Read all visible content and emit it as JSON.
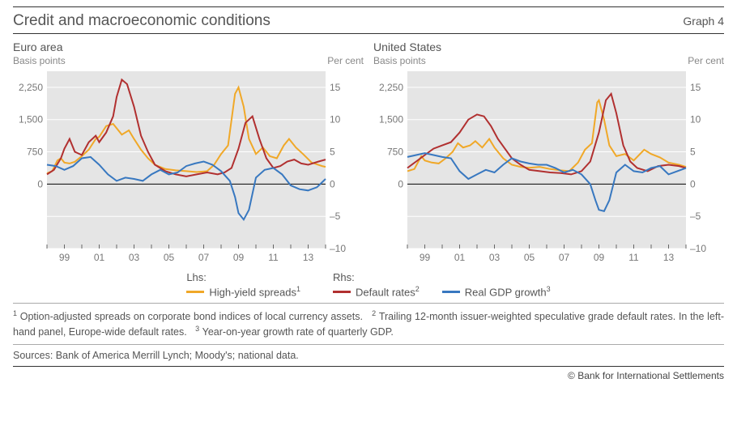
{
  "header": {
    "title": "Credit and macroeconomic conditions",
    "graph_label": "Graph 4"
  },
  "axis_labels": {
    "left": "Basis points",
    "right": "Per cent"
  },
  "chart_style": {
    "type": "line",
    "plot_bg": "#e5e5e5",
    "grid_color": "#ffffff",
    "zero_line_color": "#000000",
    "tick_color": "#666666",
    "tick_label_color": "#777777",
    "tick_fontsize": 12,
    "left_ylim": [
      -1500,
      2625
    ],
    "left_yticks": [
      0,
      750,
      1500,
      2250
    ],
    "right_ylim": [
      -10,
      17.5
    ],
    "right_yticks": [
      -10,
      -5,
      0,
      5,
      10,
      15
    ],
    "x_years": [
      1998,
      2014
    ],
    "xtick_labels": [
      "99",
      "01",
      "03",
      "05",
      "07",
      "09",
      "11",
      "13"
    ],
    "xtick_positions": [
      1999,
      2001,
      2003,
      2005,
      2007,
      2009,
      2011,
      2013
    ],
    "line_width": 2,
    "series_colors": {
      "high_yield_spreads": "#f0a828",
      "default_rates": "#b13030",
      "real_gdp": "#3878c0"
    }
  },
  "panels": [
    {
      "title": "Euro area",
      "series": {
        "high_yield_spreads": [
          [
            1998.0,
            250
          ],
          [
            1998.3,
            300
          ],
          [
            1998.6,
            550
          ],
          [
            1998.8,
            600
          ],
          [
            1999.0,
            500
          ],
          [
            1999.3,
            480
          ],
          [
            1999.6,
            520
          ],
          [
            2000.0,
            650
          ],
          [
            2000.4,
            800
          ],
          [
            2000.8,
            1050
          ],
          [
            2001.0,
            1100
          ],
          [
            2001.4,
            1350
          ],
          [
            2001.8,
            1400
          ],
          [
            2002.3,
            1150
          ],
          [
            2002.7,
            1250
          ],
          [
            2003.0,
            1050
          ],
          [
            2003.4,
            800
          ],
          [
            2003.8,
            600
          ],
          [
            2004.2,
            450
          ],
          [
            2004.8,
            350
          ],
          [
            2005.4,
            320
          ],
          [
            2006.0,
            300
          ],
          [
            2006.6,
            280
          ],
          [
            2007.2,
            300
          ],
          [
            2007.6,
            450
          ],
          [
            2008.0,
            700
          ],
          [
            2008.4,
            900
          ],
          [
            2008.8,
            2100
          ],
          [
            2009.0,
            2250
          ],
          [
            2009.3,
            1800
          ],
          [
            2009.6,
            1050
          ],
          [
            2010.0,
            700
          ],
          [
            2010.4,
            850
          ],
          [
            2010.8,
            650
          ],
          [
            2011.2,
            600
          ],
          [
            2011.6,
            900
          ],
          [
            2011.9,
            1050
          ],
          [
            2012.3,
            850
          ],
          [
            2012.7,
            700
          ],
          [
            2013.2,
            500
          ],
          [
            2013.8,
            420
          ],
          [
            2014.0,
            400
          ]
        ],
        "default_rates": [
          [
            1998.0,
            1.5
          ],
          [
            1998.4,
            2.2
          ],
          [
            1998.8,
            4.0
          ],
          [
            1999.0,
            5.5
          ],
          [
            1999.3,
            7.0
          ],
          [
            1999.6,
            5.0
          ],
          [
            2000.0,
            4.5
          ],
          [
            2000.4,
            6.5
          ],
          [
            2000.8,
            7.5
          ],
          [
            2001.0,
            6.5
          ],
          [
            2001.4,
            8.0
          ],
          [
            2001.8,
            10.5
          ],
          [
            2002.0,
            13.5
          ],
          [
            2002.3,
            16.2
          ],
          [
            2002.6,
            15.5
          ],
          [
            2003.0,
            12.0
          ],
          [
            2003.4,
            7.5
          ],
          [
            2003.8,
            5.0
          ],
          [
            2004.2,
            3.0
          ],
          [
            2004.8,
            2.0
          ],
          [
            2005.4,
            1.5
          ],
          [
            2006.0,
            1.2
          ],
          [
            2006.6,
            1.5
          ],
          [
            2007.2,
            1.8
          ],
          [
            2007.8,
            1.5
          ],
          [
            2008.2,
            1.8
          ],
          [
            2008.6,
            2.5
          ],
          [
            2009.0,
            5.5
          ],
          [
            2009.4,
            9.5
          ],
          [
            2009.8,
            10.5
          ],
          [
            2010.2,
            7.0
          ],
          [
            2010.6,
            4.0
          ],
          [
            2011.0,
            2.5
          ],
          [
            2011.4,
            2.8
          ],
          [
            2011.8,
            3.5
          ],
          [
            2012.2,
            3.8
          ],
          [
            2012.6,
            3.2
          ],
          [
            2013.0,
            3.0
          ],
          [
            2013.6,
            3.5
          ],
          [
            2014.0,
            3.8
          ]
        ],
        "real_gdp": [
          [
            1998.0,
            3.0
          ],
          [
            1998.5,
            2.8
          ],
          [
            1999.0,
            2.2
          ],
          [
            1999.5,
            2.8
          ],
          [
            2000.0,
            4.0
          ],
          [
            2000.5,
            4.2
          ],
          [
            2001.0,
            3.0
          ],
          [
            2001.5,
            1.5
          ],
          [
            2002.0,
            0.5
          ],
          [
            2002.5,
            1.0
          ],
          [
            2003.0,
            0.8
          ],
          [
            2003.5,
            0.5
          ],
          [
            2004.0,
            1.5
          ],
          [
            2004.5,
            2.2
          ],
          [
            2005.0,
            1.5
          ],
          [
            2005.5,
            1.8
          ],
          [
            2006.0,
            2.8
          ],
          [
            2006.5,
            3.2
          ],
          [
            2007.0,
            3.5
          ],
          [
            2007.5,
            3.0
          ],
          [
            2008.0,
            2.0
          ],
          [
            2008.5,
            0.5
          ],
          [
            2008.8,
            -2.0
          ],
          [
            2009.0,
            -4.5
          ],
          [
            2009.3,
            -5.5
          ],
          [
            2009.6,
            -4.0
          ],
          [
            2010.0,
            1.0
          ],
          [
            2010.5,
            2.2
          ],
          [
            2011.0,
            2.5
          ],
          [
            2011.5,
            1.5
          ],
          [
            2012.0,
            -0.2
          ],
          [
            2012.5,
            -0.8
          ],
          [
            2013.0,
            -1.0
          ],
          [
            2013.5,
            -0.5
          ],
          [
            2014.0,
            0.8
          ]
        ]
      }
    },
    {
      "title": "United States",
      "series": {
        "high_yield_spreads": [
          [
            1998.0,
            300
          ],
          [
            1998.4,
            350
          ],
          [
            1998.8,
            650
          ],
          [
            1999.0,
            550
          ],
          [
            1999.4,
            500
          ],
          [
            1999.8,
            480
          ],
          [
            2000.2,
            600
          ],
          [
            2000.6,
            750
          ],
          [
            2000.9,
            950
          ],
          [
            2001.2,
            850
          ],
          [
            2001.6,
            900
          ],
          [
            2001.9,
            1000
          ],
          [
            2002.3,
            850
          ],
          [
            2002.7,
            1050
          ],
          [
            2003.0,
            850
          ],
          [
            2003.5,
            600
          ],
          [
            2004.0,
            450
          ],
          [
            2004.5,
            400
          ],
          [
            2005.0,
            380
          ],
          [
            2005.6,
            400
          ],
          [
            2006.2,
            350
          ],
          [
            2006.8,
            320
          ],
          [
            2007.3,
            300
          ],
          [
            2007.8,
            500
          ],
          [
            2008.2,
            800
          ],
          [
            2008.6,
            950
          ],
          [
            2008.9,
            1900
          ],
          [
            2009.0,
            1950
          ],
          [
            2009.3,
            1500
          ],
          [
            2009.6,
            900
          ],
          [
            2010.0,
            650
          ],
          [
            2010.5,
            700
          ],
          [
            2011.0,
            550
          ],
          [
            2011.6,
            800
          ],
          [
            2012.0,
            700
          ],
          [
            2012.5,
            620
          ],
          [
            2013.0,
            500
          ],
          [
            2013.6,
            450
          ],
          [
            2014.0,
            400
          ]
        ],
        "default_rates": [
          [
            1998.0,
            2.5
          ],
          [
            1998.5,
            3.5
          ],
          [
            1999.0,
            4.5
          ],
          [
            1999.5,
            5.5
          ],
          [
            2000.0,
            6.0
          ],
          [
            2000.5,
            6.5
          ],
          [
            2001.0,
            8.0
          ],
          [
            2001.5,
            10.0
          ],
          [
            2002.0,
            10.8
          ],
          [
            2002.4,
            10.5
          ],
          [
            2002.8,
            9.0
          ],
          [
            2003.2,
            7.0
          ],
          [
            2003.6,
            5.5
          ],
          [
            2004.0,
            4.0
          ],
          [
            2004.5,
            3.0
          ],
          [
            2005.0,
            2.2
          ],
          [
            2005.6,
            2.0
          ],
          [
            2006.2,
            1.8
          ],
          [
            2006.8,
            1.7
          ],
          [
            2007.4,
            1.5
          ],
          [
            2008.0,
            2.0
          ],
          [
            2008.5,
            3.5
          ],
          [
            2009.0,
            8.0
          ],
          [
            2009.4,
            13.0
          ],
          [
            2009.7,
            14.0
          ],
          [
            2010.0,
            11.0
          ],
          [
            2010.4,
            6.0
          ],
          [
            2010.8,
            3.5
          ],
          [
            2011.2,
            2.5
          ],
          [
            2011.8,
            2.0
          ],
          [
            2012.4,
            2.8
          ],
          [
            2013.0,
            3.0
          ],
          [
            2013.6,
            2.8
          ],
          [
            2014.0,
            2.5
          ]
        ],
        "real_gdp": [
          [
            1998.0,
            4.2
          ],
          [
            1998.5,
            4.5
          ],
          [
            1999.0,
            4.8
          ],
          [
            1999.5,
            4.5
          ],
          [
            2000.0,
            4.2
          ],
          [
            2000.5,
            4.0
          ],
          [
            2001.0,
            2.0
          ],
          [
            2001.5,
            0.8
          ],
          [
            2002.0,
            1.5
          ],
          [
            2002.5,
            2.2
          ],
          [
            2003.0,
            1.8
          ],
          [
            2003.5,
            3.0
          ],
          [
            2004.0,
            4.0
          ],
          [
            2004.5,
            3.5
          ],
          [
            2005.0,
            3.2
          ],
          [
            2005.5,
            3.0
          ],
          [
            2006.0,
            3.0
          ],
          [
            2006.5,
            2.5
          ],
          [
            2007.0,
            1.8
          ],
          [
            2007.5,
            2.2
          ],
          [
            2008.0,
            1.5
          ],
          [
            2008.5,
            0.0
          ],
          [
            2008.8,
            -2.5
          ],
          [
            2009.0,
            -4.0
          ],
          [
            2009.3,
            -4.2
          ],
          [
            2009.6,
            -2.5
          ],
          [
            2010.0,
            1.8
          ],
          [
            2010.5,
            3.0
          ],
          [
            2011.0,
            2.0
          ],
          [
            2011.5,
            1.8
          ],
          [
            2012.0,
            2.5
          ],
          [
            2012.5,
            2.8
          ],
          [
            2013.0,
            1.5
          ],
          [
            2013.5,
            2.0
          ],
          [
            2014.0,
            2.5
          ]
        ]
      }
    }
  ],
  "legend": {
    "lhs_label": "Lhs:",
    "rhs_label": "Rhs:",
    "items": {
      "high_yield_spreads": "High-yield spreads",
      "default_rates": "Default rates",
      "real_gdp": "Real GDP growth"
    },
    "footnote_refs": {
      "high_yield_spreads": "1",
      "default_rates": "2",
      "real_gdp": "3"
    }
  },
  "footnotes": {
    "f1": "Option-adjusted spreads on corporate bond indices of local currency assets.",
    "f2": "Trailing 12-month issuer-weighted speculative grade default rates. In the left-hand panel, Europe-wide default rates.",
    "f3": "Year-on-year growth rate of quarterly GDP."
  },
  "sources": "Sources: Bank of America Merrill Lynch; Moody's; national data.",
  "attribution": "© Bank for International Settlements"
}
